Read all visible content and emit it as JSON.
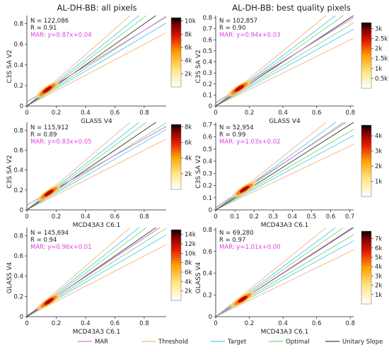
{
  "column_titles": [
    "AL-DH-BB: all pixels",
    "AL-DH-BB: best quality pixels"
  ],
  "colors": {
    "MAR": "#d97ad9",
    "Threshold": "#f5b47a",
    "Target": "#52c8f0",
    "Optimal": "#74d874",
    "Unitary Slope": "#444444",
    "mar_text": "#e040e0"
  },
  "legend": [
    {
      "label": "MAR",
      "key": "MAR"
    },
    {
      "label": "Threshold",
      "key": "Threshold"
    },
    {
      "label": "Target",
      "key": "Target"
    },
    {
      "label": "Optimal",
      "key": "Optimal"
    },
    {
      "label": "Unitary Slope",
      "key": "Unitary Slope"
    }
  ],
  "chart_data": [
    {
      "type": "scatter",
      "panel": "row1-left",
      "xlabel": "GLASS V4",
      "ylabel": "C3S SA V2",
      "xlim": [
        0,
        0.95
      ],
      "ylim": [
        0,
        0.88
      ],
      "xticks": [
        "0",
        "0.2",
        "0.4",
        "0.6",
        "0.8"
      ],
      "xtick_values": [
        0,
        0.2,
        0.4,
        0.6,
        0.8
      ],
      "yticks": [
        "0",
        "0.2",
        "0.4",
        "0.6",
        "0.8"
      ],
      "ytick_values": [
        0,
        0.2,
        0.4,
        0.6,
        0.8
      ],
      "stats": {
        "n": "N = 122,086",
        "r": "R = 0.91",
        "mar": "MAR: y=0.87x+0.04"
      },
      "mar_line": {
        "slope": 0.87,
        "intercept": 0.04
      },
      "density_cluster": {
        "x": 0.14,
        "y": 0.16
      },
      "colorbar": {
        "ticks": [
          "2k",
          "4k",
          "6k",
          "8k",
          "10k"
        ],
        "tick_values": [
          2000,
          4000,
          6000,
          8000,
          10000
        ],
        "max": 10500
      }
    },
    {
      "type": "scatter",
      "panel": "row1-right",
      "xlabel": "GLASS V4",
      "ylabel": "C3S SA V2",
      "xlim": [
        0,
        0.82
      ],
      "ylim": [
        0,
        0.82
      ],
      "xticks": [
        "0",
        "0.2",
        "0.4",
        "0.6",
        "0.8"
      ],
      "xtick_values": [
        0,
        0.2,
        0.4,
        0.6,
        0.8
      ],
      "yticks": [
        "0",
        "0.1",
        "0.2",
        "0.3",
        "0.4",
        "0.5",
        "0.6",
        "0.7",
        "0.8"
      ],
      "ytick_values": [
        0,
        0.1,
        0.2,
        0.3,
        0.4,
        0.5,
        0.6,
        0.7,
        0.8
      ],
      "stats": {
        "n": "N = 102,857",
        "r": "R = 0.90",
        "mar": "MAR: y=0.94x+0.03"
      },
      "mar_line": {
        "slope": 0.94,
        "intercept": 0.03
      },
      "density_cluster": {
        "x": 0.14,
        "y": 0.16
      },
      "colorbar": {
        "ticks": [
          "0.5k",
          "1k",
          "1.5k",
          "2k",
          "2.5k",
          "3k"
        ],
        "tick_values": [
          500,
          1000,
          1500,
          2000,
          2500,
          3000
        ],
        "max": 3300
      }
    },
    {
      "type": "scatter",
      "panel": "row2-left",
      "xlabel": "MCD43A3 C6.1",
      "ylabel": "C3S SA V2",
      "xlim": [
        0,
        0.95
      ],
      "ylim": [
        0,
        0.88
      ],
      "xticks": [
        "0",
        "0.2",
        "0.4",
        "0.6",
        "0.8"
      ],
      "xtick_values": [
        0,
        0.2,
        0.4,
        0.6,
        0.8
      ],
      "yticks": [
        "0",
        "0.2",
        "0.4",
        "0.6",
        "0.8"
      ],
      "ytick_values": [
        0,
        0.2,
        0.4,
        0.6,
        0.8
      ],
      "stats": {
        "n": "N = 115,912",
        "r": "R = 0.89",
        "mar": "MAR: y=0.83x+0.05"
      },
      "mar_line": {
        "slope": 0.83,
        "intercept": 0.05
      },
      "density_cluster": {
        "x": 0.15,
        "y": 0.17
      },
      "colorbar": {
        "ticks": [
          "2k",
          "4k",
          "6k",
          "8k"
        ],
        "tick_values": [
          2000,
          4000,
          6000,
          8000
        ],
        "max": 8300
      }
    },
    {
      "type": "scatter",
      "panel": "row2-right",
      "xlabel": "MCD43A3 C6.1",
      "ylabel": "C3S SA V2",
      "xlim": [
        0,
        0.72
      ],
      "ylim": [
        0,
        0.72
      ],
      "xticks": [
        "0",
        "0.1",
        "0.2",
        "0.3",
        "0.4",
        "0.5",
        "0.6",
        "0.7"
      ],
      "xtick_values": [
        0,
        0.1,
        0.2,
        0.3,
        0.4,
        0.5,
        0.6,
        0.7
      ],
      "yticks": [
        "0",
        "0.1",
        "0.2",
        "0.3",
        "0.4",
        "0.5",
        "0.6",
        "0.7"
      ],
      "ytick_values": [
        0,
        0.1,
        0.2,
        0.3,
        0.4,
        0.5,
        0.6,
        0.7
      ],
      "stats": {
        "n": "N = 52,954",
        "r": "R = 0.99",
        "mar": "MAR: y=1.03x+0.02"
      },
      "mar_line": {
        "slope": 1.03,
        "intercept": 0.02
      },
      "density_cluster": {
        "x": 0.15,
        "y": 0.17
      },
      "colorbar": {
        "ticks": [
          "1k",
          "2k",
          "3k",
          "4k"
        ],
        "tick_values": [
          1000,
          2000,
          3000,
          4000
        ],
        "max": 4700
      }
    },
    {
      "type": "scatter",
      "panel": "row3-left",
      "xlabel": "MCD43A3 C6.1",
      "ylabel": "GLASS V4",
      "xlim": [
        0,
        0.95
      ],
      "ylim": [
        0,
        0.88
      ],
      "xticks": [
        "0",
        "0.2",
        "0.4",
        "0.6",
        "0.8"
      ],
      "xtick_values": [
        0,
        0.2,
        0.4,
        0.6,
        0.8
      ],
      "yticks": [
        "0",
        "0.2",
        "0.4",
        "0.6",
        "0.8"
      ],
      "ytick_values": [
        0,
        0.2,
        0.4,
        0.6,
        0.8
      ],
      "stats": {
        "n": "N = 145,694",
        "r": "R = 0.94",
        "mar": "MAR: y=0.96x+0.01"
      },
      "mar_line": {
        "slope": 0.96,
        "intercept": 0.01
      },
      "density_cluster": {
        "x": 0.15,
        "y": 0.15
      },
      "colorbar": {
        "ticks": [
          "2k",
          "4k",
          "6k",
          "8k",
          "10k",
          "12k",
          "14k"
        ],
        "tick_values": [
          2000,
          4000,
          6000,
          8000,
          10000,
          12000,
          14000
        ],
        "max": 15000
      }
    },
    {
      "type": "scatter",
      "panel": "row3-right",
      "xlabel": "MCD43A3 C6.1",
      "ylabel": "GLASS V4",
      "xlim": [
        0,
        0.82
      ],
      "ylim": [
        0,
        0.82
      ],
      "xticks": [
        "0",
        "0.2",
        "0.4",
        "0.6",
        "0.8"
      ],
      "xtick_values": [
        0,
        0.2,
        0.4,
        0.6,
        0.8
      ],
      "yticks": [
        "0",
        "0.2",
        "0.4",
        "0.6",
        "0.8"
      ],
      "ytick_values": [
        0,
        0.2,
        0.4,
        0.6,
        0.8
      ],
      "stats": {
        "n": "N = 69,280",
        "r": "R = 0.97",
        "mar": "MAR: y=1.01x+0.00"
      },
      "mar_line": {
        "slope": 1.01,
        "intercept": 0.0
      },
      "density_cluster": {
        "x": 0.16,
        "y": 0.16
      },
      "colorbar": {
        "ticks": [
          "1k",
          "2k",
          "3k",
          "4k",
          "5k",
          "6k",
          "7k"
        ],
        "tick_values": [
          1000,
          2000,
          3000,
          4000,
          5000,
          6000,
          7000
        ],
        "max": 7800
      }
    }
  ]
}
